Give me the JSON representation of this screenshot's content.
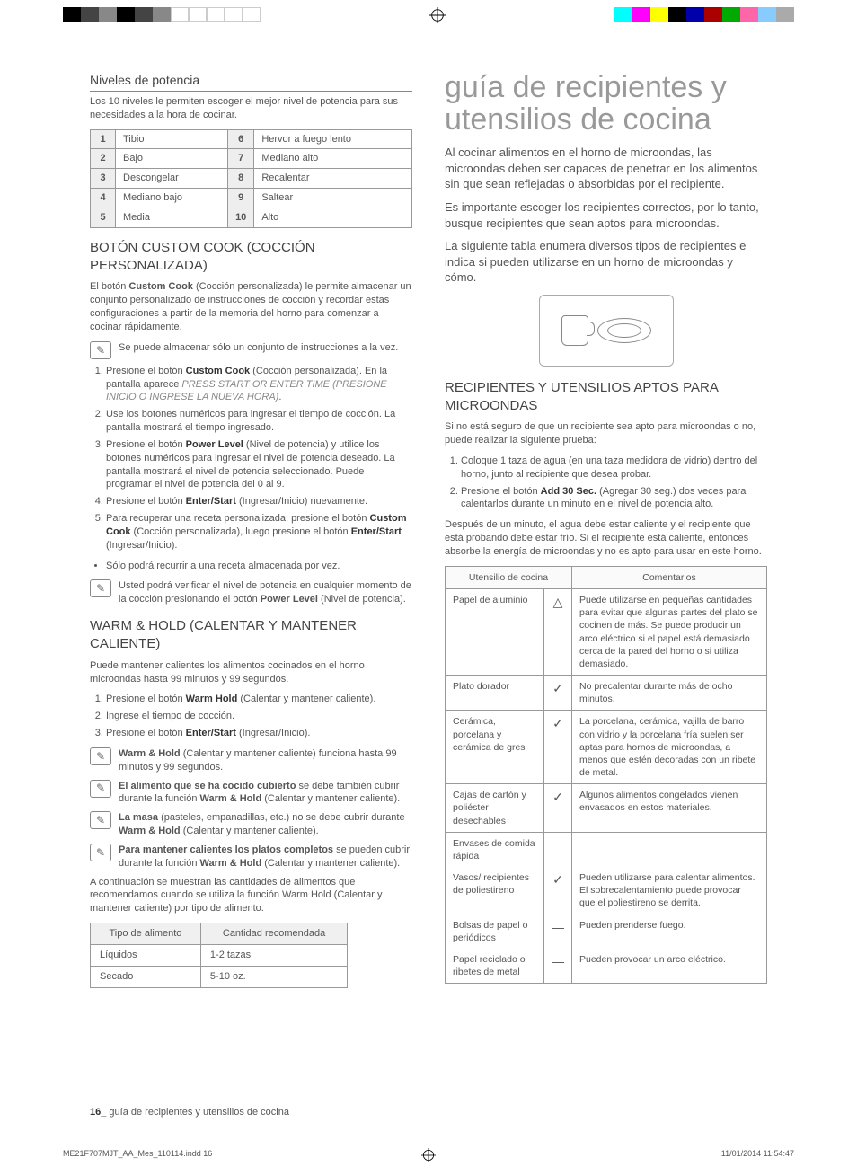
{
  "cropmarks": {
    "left_colors": [
      "#000",
      "#444",
      "#888",
      "#000",
      "#444",
      "#888",
      "#fff",
      "#fff",
      "#fff",
      "#fff",
      "#fff"
    ],
    "right_colors": [
      "#0ff",
      "#f0f",
      "#ff0",
      "#000",
      "#00a",
      "#a00",
      "#0a0",
      "#f6a",
      "#8cf",
      "#aaa"
    ]
  },
  "left_col": {
    "h_power": "Niveles de potencia",
    "p_power": "Los 10 niveles le permiten escoger el mejor nivel de potencia para sus necesidades a la hora de cocinar.",
    "power_table": [
      [
        "1",
        "Tibio",
        "6",
        "Hervor a fuego lento"
      ],
      [
        "2",
        "Bajo",
        "7",
        "Mediano alto"
      ],
      [
        "3",
        "Descongelar",
        "8",
        "Recalentar"
      ],
      [
        "4",
        "Mediano bajo",
        "9",
        "Saltear"
      ],
      [
        "5",
        "Media",
        "10",
        "Alto"
      ]
    ],
    "h_custom": "BOTÓN CUSTOM COOK (COCCIÓN PERSONALIZADA)",
    "p_custom": "El botón Custom Cook (Cocción personalizada) le permite almacenar un conjunto personalizado de instrucciones de cocción y recordar estas configuraciones a partir de la memoria del horno para comenzar a cocinar rápidamente.",
    "note_custom": "Se puede almacenar sólo un conjunto de instrucciones a la vez.",
    "custom_steps": [
      {
        "pre": "Presione el botón ",
        "b": "Custom Cook",
        "post": " (Cocción personalizada). En la pantalla aparece ",
        "i": "PRESS START OR ENTER TIME (PRESIONE INICIO O INGRESE LA NUEVA HORA)",
        "post2": "."
      },
      {
        "pre": "Use los botones numéricos para ingresar el tiempo de cocción. La pantalla mostrará el tiempo ingresado.",
        "b": "",
        "post": "",
        "i": "",
        "post2": ""
      },
      {
        "pre": "Presione el botón ",
        "b": "Power Level",
        "post": " (Nivel de potencia) y utilice los botones numéricos para ingresar el nivel de potencia deseado. La pantalla mostrará el nivel de potencia seleccionado. Puede programar el nivel de potencia del 0 al 9.",
        "i": "",
        "post2": ""
      },
      {
        "pre": "Presione el botón ",
        "b": "Enter/Start",
        "post": " (Ingresar/Inicio) nuevamente.",
        "i": "",
        "post2": ""
      },
      {
        "pre": "Para recuperar una receta personalizada, presione el botón ",
        "b": "Custom Cook",
        "post": " (Cocción personalizada), luego presione el botón ",
        "b2": "Enter/Start",
        "post2": " (Ingresar/Inicio)."
      }
    ],
    "bullet_custom": "Sólo podrá recurrir a una receta almacenada por vez.",
    "note_custom2_pre": "Usted podrá verificar el nivel de potencia en cualquier momento de la cocción presionando el botón ",
    "note_custom2_b": "Power Level",
    "note_custom2_post": " (Nivel de potencia).",
    "h_warm": "WARM & HOLD (CALENTAR Y MANTENER CALIENTE)",
    "p_warm": "Puede mantener calientes los alimentos cocinados en el horno microondas hasta 99 minutos y 99 segundos.",
    "warm_steps": [
      {
        "pre": "Presione el botón ",
        "b": "Warm Hold",
        "post": " (Calentar y mantener caliente)."
      },
      {
        "pre": "Ingrese el tiempo de cocción.",
        "b": "",
        "post": ""
      },
      {
        "pre": "Presione el botón ",
        "b": "Enter/Start",
        "post": " (Ingresar/Inicio)."
      }
    ],
    "warm_notes": [
      {
        "b": "Warm & Hold",
        "rest": " (Calentar y mantener caliente) funciona hasta 99 minutos y 99 segundos."
      },
      {
        "b": "El alimento que se ha cocido cubierto",
        "rest": " se debe también cubrir durante la función ",
        "b2": "Warm & Hold",
        "rest2": " (Calentar y mantener caliente)."
      },
      {
        "b": "La masa",
        "rest": " (pasteles, empanadillas, etc.) no se debe cubrir durante ",
        "b2": "Warm & Hold",
        "rest2": " (Calentar y mantener caliente)."
      },
      {
        "b": "Para mantener calientes los platos completos",
        "rest": " se pueden cubrir durante la función ",
        "b2": "Warm & Hold",
        "rest2": " (Calentar y mantener caliente)."
      }
    ],
    "p_warm2": "A continuación se muestran las cantidades de alimentos que recomendamos cuando se utiliza la función Warm Hold (Calentar y mantener caliente) por tipo de alimento.",
    "amount_headers": [
      "Tipo de alimento",
      "Cantidad recomendada"
    ],
    "amount_rows": [
      [
        "Líquidos",
        "1-2 tazas"
      ],
      [
        "Secado",
        "5-10 oz."
      ]
    ]
  },
  "right_col": {
    "big_title_l1": "guía de recipientes y",
    "big_title_l2": "utensilios de cocina",
    "p1": "Al cocinar alimentos en el horno de microondas, las microondas deben ser capaces de penetrar en los alimentos sin que sean reflejadas o absorbidas por el recipiente.",
    "p2": "Es importante escoger los recipientes correctos, por lo tanto, busque recipientes que sean aptos para microondas.",
    "p3": "La siguiente tabla enumera diversos tipos de recipientes e indica si pueden utilizarse en un horno de microondas y cómo.",
    "h_aptos": "RECIPIENTES Y UTENSILIOS APTOS PARA MICROONDAS",
    "p_aptos": "Si no está seguro de que un recipiente sea apto para microondas o no, puede realizar la siguiente prueba:",
    "aptos_steps": [
      "Coloque 1 taza de agua (en una taza medidora de vidrio) dentro del horno, junto al recipiente que desea probar.",
      "Presione el botón Add 30 Sec. (Agregar 30 seg.) dos veces para calentarlos durante un minuto en el nivel de potencia alto."
    ],
    "aptos_step2_b": "Add 30 Sec.",
    "p_aptos2": "Después de un minuto, el agua debe estar caliente y el recipiente que está probando debe estar frío. Si el recipiente está caliente, entonces absorbe la energía de microondas y no es apto para usar en este horno.",
    "utensil_headers": [
      "Utensilio de cocina",
      "",
      "Comentarios"
    ],
    "utensil_rows": [
      {
        "name": "Papel de aluminio",
        "sym": "△",
        "comment": "Puede utilizarse en pequeñas cantidades para evitar que algunas partes del plato se cocinen de más. Se puede producir un arco eléctrico si el papel está demasiado cerca de la pared del horno o si utiliza demasiado."
      },
      {
        "name": "Plato dorador",
        "sym": "✓",
        "comment": "No precalentar durante más de ocho minutos."
      },
      {
        "name": "Cerámica, porcelana y cerámica de gres",
        "sym": "✓",
        "comment": "La porcelana, cerámica, vajilla de barro con vidrio y la porcelana fría suelen ser aptas para hornos de microondas, a menos que estén decoradas con un ribete de metal."
      },
      {
        "name": "Cajas de cartón y poliéster desechables",
        "sym": "✓",
        "comment": "Algunos alimentos congelados vienen envasados en estos materiales."
      },
      {
        "name": "Envases de comida rápida",
        "sym": "",
        "comment": "",
        "sub": true,
        "top": true
      },
      {
        "name": "Vasos/ recipientes de poliestireno",
        "sym": "✓",
        "comment": "Pueden utilizarse para calentar alimentos. El sobrecalentamiento puede provocar que el poliestireno se derrita.",
        "sub": true,
        "mid": true
      },
      {
        "name": "Bolsas de papel o periódicos",
        "sym": "—",
        "comment": "Pueden prenderse fuego.",
        "sub": true,
        "mid": true
      },
      {
        "name": "Papel reciclado o ribetes de metal",
        "sym": "—",
        "comment": "Pueden provocar un arco eléctrico.",
        "sub": true,
        "bot": true
      }
    ]
  },
  "footer_page": "16_",
  "footer_text": " guía de recipientes y utensilios de cocina",
  "print_left": "ME21F707MJT_AA_Mes_110114.indd   16",
  "print_right": "11/01/2014   11:54:47"
}
